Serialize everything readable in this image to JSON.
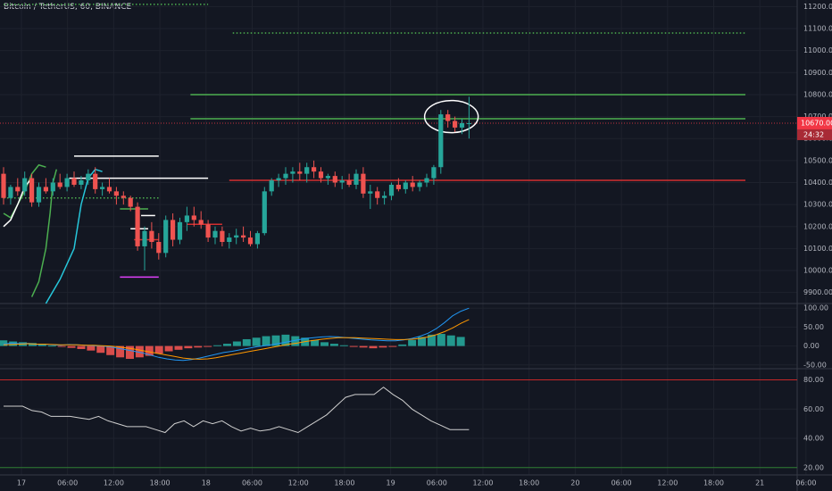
{
  "header": {
    "title": "Bitcoin / TetherUS, 60, BINANCE"
  },
  "colors": {
    "background": "#131722",
    "grid": "#1e222d",
    "bull": "#26a69a",
    "bear": "#ef5350",
    "price_tag": "#f23645",
    "green_level": "#4caf50",
    "red_level": "#d32f2f",
    "white_level": "#ffffff",
    "magenta_level": "#e040fb",
    "macd_line": "#2196f3",
    "signal_line": "#ff9800",
    "rsi_line": "#cfcfcf",
    "rsi_overbought": "#c62828",
    "rsi_oversold": "#2e7d32"
  },
  "price_axis": {
    "ticks": [
      "11200.00",
      "11100.00",
      "11000.00",
      "10900.00",
      "10800.00",
      "10700.00",
      "10600.00",
      "10500.00",
      "10400.00",
      "10300.00",
      "10200.00",
      "10100.00",
      "10000.00",
      "9900.00"
    ],
    "current_price": "10670.00",
    "countdown": "24:32"
  },
  "macd_axis": {
    "ticks": [
      "100.00",
      "50.00",
      "0.00",
      "-50.00"
    ]
  },
  "rsi_axis": {
    "ticks": [
      "80.00",
      "60.00",
      "40.00",
      "20.00"
    ]
  },
  "time_axis": {
    "labels": [
      "17",
      "06:00",
      "12:00",
      "18:00",
      "18",
      "06:00",
      "12:00",
      "18:00",
      "19",
      "06:00",
      "12:00",
      "18:00",
      "20",
      "06:00",
      "12:00",
      "18:00",
      "21",
      "06:00"
    ]
  },
  "chart_data": [
    {
      "type": "candlestick",
      "title": "Bitcoin / TetherUS, 60, BINANCE",
      "ylim": [
        9850,
        11230
      ],
      "current_price": 10670,
      "candles": [
        {
          "o": 10440,
          "h": 10470,
          "l": 10300,
          "c": 10330
        },
        {
          "o": 10330,
          "h": 10390,
          "l": 10300,
          "c": 10380
        },
        {
          "o": 10380,
          "h": 10420,
          "l": 10340,
          "c": 10360
        },
        {
          "o": 10360,
          "h": 10450,
          "l": 10340,
          "c": 10420
        },
        {
          "o": 10420,
          "h": 10440,
          "l": 10290,
          "c": 10310
        },
        {
          "o": 10310,
          "h": 10400,
          "l": 10290,
          "c": 10380
        },
        {
          "o": 10380,
          "h": 10420,
          "l": 10350,
          "c": 10360
        },
        {
          "o": 10360,
          "h": 10420,
          "l": 10340,
          "c": 10400
        },
        {
          "o": 10400,
          "h": 10440,
          "l": 10370,
          "c": 10380
        },
        {
          "o": 10380,
          "h": 10440,
          "l": 10360,
          "c": 10420
        },
        {
          "o": 10420,
          "h": 10450,
          "l": 10380,
          "c": 10390
        },
        {
          "o": 10390,
          "h": 10430,
          "l": 10370,
          "c": 10410
        },
        {
          "o": 10410,
          "h": 10460,
          "l": 10390,
          "c": 10440
        },
        {
          "o": 10440,
          "h": 10470,
          "l": 10350,
          "c": 10370
        },
        {
          "o": 10370,
          "h": 10400,
          "l": 10340,
          "c": 10380
        },
        {
          "o": 10380,
          "h": 10420,
          "l": 10350,
          "c": 10360
        },
        {
          "o": 10360,
          "h": 10380,
          "l": 10300,
          "c": 10340
        },
        {
          "o": 10340,
          "h": 10360,
          "l": 10300,
          "c": 10330
        },
        {
          "o": 10330,
          "h": 10340,
          "l": 10270,
          "c": 10290
        },
        {
          "o": 10290,
          "h": 10310,
          "l": 10090,
          "c": 10110
        },
        {
          "o": 10110,
          "h": 10200,
          "l": 10000,
          "c": 10180
        },
        {
          "o": 10180,
          "h": 10220,
          "l": 10100,
          "c": 10130
        },
        {
          "o": 10130,
          "h": 10170,
          "l": 10050,
          "c": 10080
        },
        {
          "o": 10080,
          "h": 10250,
          "l": 10060,
          "c": 10230
        },
        {
          "o": 10230,
          "h": 10260,
          "l": 10110,
          "c": 10140
        },
        {
          "o": 10140,
          "h": 10240,
          "l": 10120,
          "c": 10220
        },
        {
          "o": 10220,
          "h": 10290,
          "l": 10180,
          "c": 10250
        },
        {
          "o": 10250,
          "h": 10290,
          "l": 10200,
          "c": 10230
        },
        {
          "o": 10230,
          "h": 10270,
          "l": 10190,
          "c": 10210
        },
        {
          "o": 10210,
          "h": 10230,
          "l": 10130,
          "c": 10150
        },
        {
          "o": 10150,
          "h": 10200,
          "l": 10120,
          "c": 10180
        },
        {
          "o": 10180,
          "h": 10200,
          "l": 10110,
          "c": 10130
        },
        {
          "o": 10130,
          "h": 10170,
          "l": 10100,
          "c": 10150
        },
        {
          "o": 10150,
          "h": 10190,
          "l": 10120,
          "c": 10160
        },
        {
          "o": 10160,
          "h": 10200,
          "l": 10130,
          "c": 10150
        },
        {
          "o": 10150,
          "h": 10180,
          "l": 10110,
          "c": 10120
        },
        {
          "o": 10120,
          "h": 10180,
          "l": 10100,
          "c": 10170
        },
        {
          "o": 10170,
          "h": 10380,
          "l": 10160,
          "c": 10360
        },
        {
          "o": 10360,
          "h": 10420,
          "l": 10340,
          "c": 10410
        },
        {
          "o": 10410,
          "h": 10440,
          "l": 10380,
          "c": 10420
        },
        {
          "o": 10420,
          "h": 10470,
          "l": 10390,
          "c": 10440
        },
        {
          "o": 10440,
          "h": 10470,
          "l": 10400,
          "c": 10450
        },
        {
          "o": 10450,
          "h": 10490,
          "l": 10410,
          "c": 10440
        },
        {
          "o": 10440,
          "h": 10490,
          "l": 10400,
          "c": 10470
        },
        {
          "o": 10470,
          "h": 10500,
          "l": 10420,
          "c": 10450
        },
        {
          "o": 10450,
          "h": 10470,
          "l": 10400,
          "c": 10420
        },
        {
          "o": 10420,
          "h": 10440,
          "l": 10390,
          "c": 10430
        },
        {
          "o": 10430,
          "h": 10450,
          "l": 10380,
          "c": 10400
        },
        {
          "o": 10400,
          "h": 10430,
          "l": 10370,
          "c": 10410
        },
        {
          "o": 10410,
          "h": 10440,
          "l": 10380,
          "c": 10390
        },
        {
          "o": 10390,
          "h": 10460,
          "l": 10370,
          "c": 10440
        },
        {
          "o": 10440,
          "h": 10470,
          "l": 10330,
          "c": 10350
        },
        {
          "o": 10350,
          "h": 10390,
          "l": 10280,
          "c": 10360
        },
        {
          "o": 10360,
          "h": 10380,
          "l": 10300,
          "c": 10330
        },
        {
          "o": 10330,
          "h": 10360,
          "l": 10300,
          "c": 10340
        },
        {
          "o": 10340,
          "h": 10400,
          "l": 10320,
          "c": 10390
        },
        {
          "o": 10390,
          "h": 10420,
          "l": 10360,
          "c": 10370
        },
        {
          "o": 10370,
          "h": 10410,
          "l": 10350,
          "c": 10400
        },
        {
          "o": 10400,
          "h": 10430,
          "l": 10360,
          "c": 10380
        },
        {
          "o": 10380,
          "h": 10410,
          "l": 10360,
          "c": 10400
        },
        {
          "o": 10400,
          "h": 10440,
          "l": 10380,
          "c": 10420
        },
        {
          "o": 10420,
          "h": 10480,
          "l": 10390,
          "c": 10470
        },
        {
          "o": 10470,
          "h": 10730,
          "l": 10440,
          "c": 10710
        },
        {
          "o": 10710,
          "h": 10730,
          "l": 10650,
          "c": 10680
        },
        {
          "o": 10680,
          "h": 10700,
          "l": 10630,
          "c": 10650
        },
        {
          "o": 10650,
          "h": 10690,
          "l": 10620,
          "c": 10670
        },
        {
          "o": 10670,
          "h": 10790,
          "l": 10600,
          "c": 10670
        }
      ],
      "annotations": [
        {
          "name": "green-dotted-top",
          "color": "green",
          "style": "dotted",
          "y": 11210,
          "from": 0,
          "to": 29
        },
        {
          "name": "green-dotted-right",
          "color": "green",
          "style": "dotted",
          "y": 11080,
          "from": 32.5,
          "to": 51.5
        },
        {
          "name": "green-level-10800",
          "color": "green",
          "style": "solid",
          "y": 10800,
          "from": 26.5,
          "to": 51.5
        },
        {
          "name": "green-level-10690",
          "color": "green",
          "style": "solid",
          "y": 10690,
          "from": 26.5,
          "to": 51.5
        },
        {
          "name": "red-level-10410",
          "color": "red",
          "style": "solid",
          "y": 10410,
          "from": 32,
          "to": 51.5
        },
        {
          "name": "white-level-10520",
          "color": "white",
          "style": "solid",
          "y": 10520,
          "from": 10,
          "to": 22
        },
        {
          "name": "white-level-10420",
          "color": "white",
          "style": "solid",
          "y": 10420,
          "from": 9.3,
          "to": 29
        },
        {
          "name": "white-level-10250",
          "color": "white",
          "style": "solid",
          "y": 10250,
          "from": 19.5,
          "to": 21.5
        },
        {
          "name": "white-level-10190",
          "color": "white",
          "style": "solid",
          "y": 10190,
          "from": 18,
          "to": 20.5
        },
        {
          "name": "green-level-10280",
          "color": "green",
          "style": "solid",
          "y": 10280,
          "from": 16.5,
          "to": 20.5
        },
        {
          "name": "green-dotted-10330",
          "color": "green",
          "style": "dotted",
          "y": 10330,
          "from": 0,
          "to": 22
        },
        {
          "name": "red-level-10140",
          "color": "red",
          "style": "solid",
          "y": 10140,
          "from": 18.5,
          "to": 22
        },
        {
          "name": "red-level-10210",
          "color": "red",
          "style": "solid",
          "y": 10210,
          "from": 26,
          "to": 31
        },
        {
          "name": "magenta-level-9970",
          "color": "magenta",
          "style": "solid",
          "y": 9970,
          "from": 16.5,
          "to": 22
        }
      ]
    },
    {
      "type": "line",
      "ylim": [
        -60,
        110
      ],
      "macd": [
        5,
        8,
        6,
        7,
        4,
        5,
        3,
        2,
        4,
        3,
        2,
        1,
        0,
        -2,
        -6,
        -10,
        -14,
        -18,
        -24,
        -30,
        -34,
        -37,
        -38,
        -36,
        -32,
        -27,
        -22,
        -17,
        -14,
        -10,
        -6,
        -2,
        1,
        4,
        8,
        12,
        16,
        20,
        22,
        24,
        25,
        24,
        22,
        20,
        18,
        16,
        15,
        14,
        14,
        16,
        20,
        26,
        34,
        46,
        62,
        80,
        92,
        100
      ],
      "signal": [
        3,
        4,
        5,
        6,
        5,
        5,
        4,
        3,
        3,
        3,
        2,
        2,
        1,
        0,
        -2,
        -5,
        -8,
        -12,
        -16,
        -20,
        -24,
        -28,
        -32,
        -34,
        -35,
        -34,
        -31,
        -27,
        -23,
        -19,
        -15,
        -11,
        -7,
        -3,
        1,
        5,
        8,
        12,
        15,
        18,
        20,
        22,
        22,
        22,
        21,
        20,
        19,
        18,
        17,
        17,
        18,
        20,
        24,
        30,
        38,
        48,
        60,
        70
      ],
      "histogram": [
        15,
        12,
        10,
        8,
        4,
        1,
        -2,
        -5,
        -8,
        -12,
        -18,
        -24,
        -30,
        -34,
        -30,
        -26,
        -20,
        -14,
        -10,
        -6,
        -4,
        -2,
        2,
        6,
        12,
        18,
        22,
        26,
        28,
        30,
        26,
        22,
        16,
        10,
        6,
        2,
        -2,
        -4,
        -6,
        -4,
        -2,
        4,
        16,
        24,
        30,
        32,
        28,
        24
      ]
    },
    {
      "type": "line",
      "ylim": [
        15,
        87
      ],
      "values": [
        62,
        62,
        62,
        59,
        58,
        55,
        55,
        55,
        54,
        53,
        55,
        52,
        50,
        48,
        48,
        48,
        46,
        44,
        50,
        52,
        48,
        52,
        50,
        52,
        48,
        45,
        47,
        45,
        46,
        48,
        46,
        44,
        48,
        52,
        56,
        62,
        68,
        70,
        70,
        70,
        75,
        70,
        66,
        60,
        56,
        52,
        49,
        46,
        46,
        46
      ],
      "overbought": 80,
      "oversold": 20
    }
  ]
}
